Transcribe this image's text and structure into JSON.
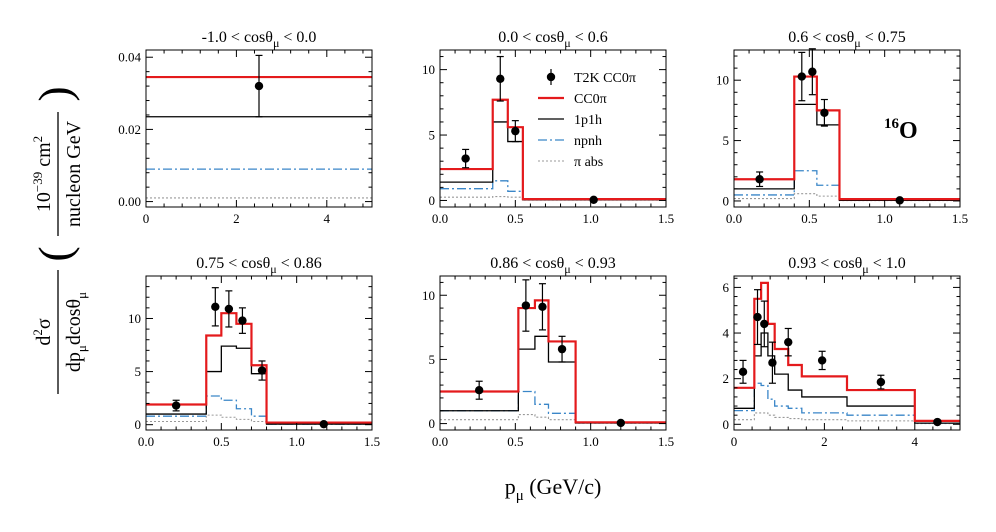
{
  "figure": {
    "ylabel_prefix": "d",
    "ylabel_sup": "2",
    "ylabel_sigma": "σ",
    "ylabel_den_a": "dp",
    "ylabel_den_sub1": "μ",
    "ylabel_den_b": "dcosθ",
    "ylabel_den_sub2": "μ",
    "yunit_num_a": "10",
    "yunit_num_sup": "−39",
    "yunit_num_b": " cm",
    "yunit_num_sup2": "2",
    "yunit_den": "nucleon GeV",
    "xlabel_p": "p",
    "xlabel_sub": "μ",
    "xlabel_units": " (GeV/c)",
    "nucleus_mass": "16",
    "nucleus_symbol": "O"
  },
  "legend": {
    "entries": [
      {
        "key": "data",
        "label": "T2K CC0π"
      },
      {
        "key": "cc0pi",
        "label": "CC0π"
      },
      {
        "key": "p1h",
        "label": "1p1h"
      },
      {
        "key": "npnh",
        "label": "npnh"
      },
      {
        "key": "piabs",
        "label": "π abs"
      }
    ]
  },
  "styles": {
    "data": {
      "color": "#000000"
    },
    "cc0pi": {
      "color": "#e41a1c"
    },
    "p1h": {
      "color": "#000000"
    },
    "npnh": {
      "color": "#3a86c8"
    },
    "piabs": {
      "color": "#999999"
    }
  },
  "chart_data": [
    {
      "type": "histogram",
      "title_prefix": "-1.0 < cosθ",
      "title_sub": "μ",
      "title_suffix": " < 0.0",
      "xlim": [
        0,
        5
      ],
      "ylim": [
        -0.0015,
        0.042
      ],
      "xticks": [
        0,
        2,
        4
      ],
      "xtick_labels": [
        "0",
        "2",
        "4"
      ],
      "yticks": [
        0,
        0.02,
        0.04
      ],
      "ytick_labels": [
        "0.00",
        "0.02",
        "0.04"
      ],
      "bins": [
        0,
        5
      ],
      "series": {
        "cc0pi": [
          0.0345
        ],
        "p1h": [
          0.0235
        ],
        "npnh": [
          0.009
        ],
        "piabs": [
          0.001
        ]
      },
      "points": [
        {
          "x": 2.5,
          "y": 0.032,
          "err": 0.0085
        }
      ]
    },
    {
      "type": "histogram",
      "title_prefix": "0.0 < cosθ",
      "title_sub": "μ",
      "title_suffix": " < 0.6",
      "xlim": [
        0,
        1.5
      ],
      "ylim": [
        -0.5,
        11.5
      ],
      "xticks": [
        0,
        0.5,
        1,
        1.5
      ],
      "xtick_labels": [
        "0.0",
        "0.5",
        "1.0",
        "1.5"
      ],
      "yticks": [
        0,
        5,
        10
      ],
      "ytick_labels": [
        "0",
        "5",
        "10"
      ],
      "bins": [
        0,
        0.35,
        0.45,
        0.55,
        1.5
      ],
      "series": {
        "cc0pi": [
          2.4,
          7.7,
          5.6,
          0.1
        ],
        "p1h": [
          1.4,
          6.0,
          4.5,
          0.05
        ],
        "npnh": [
          0.9,
          1.5,
          0.7,
          0.05
        ],
        "piabs": [
          0.25,
          0.3,
          0.25,
          0.03
        ]
      },
      "points": [
        {
          "x": 0.17,
          "y": 3.2,
          "err": 0.7
        },
        {
          "x": 0.4,
          "y": 9.3,
          "err": 1.7
        },
        {
          "x": 0.5,
          "y": 5.3,
          "err": 0.8
        },
        {
          "x": 1.02,
          "y": 0.05,
          "err": 0.0
        }
      ],
      "show_legend": true
    },
    {
      "type": "histogram",
      "title_prefix": "0.6 < cosθ",
      "title_sub": "μ",
      "title_suffix": " < 0.75",
      "xlim": [
        0,
        1.5
      ],
      "ylim": [
        -0.5,
        12.5
      ],
      "xticks": [
        0,
        0.5,
        1,
        1.5
      ],
      "xtick_labels": [
        "0.0",
        "0.5",
        "1.0",
        "1.5"
      ],
      "yticks": [
        0,
        5,
        10
      ],
      "ytick_labels": [
        "0",
        "5",
        "10"
      ],
      "bins": [
        0,
        0.4,
        0.55,
        0.7,
        1.5
      ],
      "series": {
        "cc0pi": [
          1.8,
          10.3,
          7.5,
          0.15
        ],
        "p1h": [
          1.0,
          8.0,
          6.3,
          0.05
        ],
        "npnh": [
          0.5,
          2.5,
          1.3,
          0.05
        ],
        "piabs": [
          0.2,
          0.6,
          0.4,
          0.03
        ]
      },
      "points": [
        {
          "x": 0.17,
          "y": 1.8,
          "err": 0.6
        },
        {
          "x": 0.45,
          "y": 10.3,
          "err": 2.0
        },
        {
          "x": 0.52,
          "y": 10.7,
          "err": 1.9
        },
        {
          "x": 0.6,
          "y": 7.3,
          "err": 1.1
        },
        {
          "x": 1.1,
          "y": 0.05,
          "err": 0.0
        }
      ],
      "show_nucleus": true
    },
    {
      "type": "histogram",
      "title_prefix": "0.75 < cosθ",
      "title_sub": "μ",
      "title_suffix": " < 0.86",
      "xlim": [
        0,
        1.5
      ],
      "ylim": [
        -0.5,
        14
      ],
      "xticks": [
        0,
        0.5,
        1,
        1.5
      ],
      "xtick_labels": [
        "0.0",
        "0.5",
        "1.0",
        "1.5"
      ],
      "yticks": [
        0,
        5,
        10
      ],
      "ytick_labels": [
        "0",
        "5",
        "10"
      ],
      "bins": [
        0,
        0.4,
        0.5,
        0.6,
        0.7,
        0.8,
        1.5
      ],
      "series": {
        "cc0pi": [
          1.9,
          8.4,
          10.5,
          9.5,
          5.6,
          0.2
        ],
        "p1h": [
          1.0,
          5.0,
          7.4,
          7.2,
          4.8,
          0.05
        ],
        "npnh": [
          0.8,
          2.7,
          2.3,
          1.5,
          0.8,
          0.05
        ],
        "piabs": [
          0.3,
          0.9,
          0.7,
          0.5,
          0.3,
          0.05
        ]
      },
      "points": [
        {
          "x": 0.2,
          "y": 1.8,
          "err": 0.5
        },
        {
          "x": 0.46,
          "y": 11.1,
          "err": 1.8
        },
        {
          "x": 0.55,
          "y": 10.9,
          "err": 1.7
        },
        {
          "x": 0.64,
          "y": 9.8,
          "err": 1.2
        },
        {
          "x": 0.77,
          "y": 5.1,
          "err": 0.9
        },
        {
          "x": 1.18,
          "y": 0.05,
          "err": 0.0
        }
      ]
    },
    {
      "type": "histogram",
      "title_prefix": "0.86 < cosθ",
      "title_sub": "μ",
      "title_suffix": " < 0.93",
      "xlim": [
        0,
        1.5
      ],
      "ylim": [
        -0.5,
        11.5
      ],
      "xticks": [
        0,
        0.5,
        1,
        1.5
      ],
      "xtick_labels": [
        "0.0",
        "0.5",
        "1.0",
        "1.5"
      ],
      "yticks": [
        0,
        5,
        10
      ],
      "ytick_labels": [
        "0",
        "5",
        "10"
      ],
      "bins": [
        0,
        0.52,
        0.63,
        0.72,
        0.9,
        1.5
      ],
      "series": {
        "cc0pi": [
          2.5,
          9.0,
          9.6,
          6.4,
          0.1
        ],
        "p1h": [
          1.0,
          5.8,
          6.8,
          4.8,
          0.05
        ],
        "npnh": [
          1.0,
          2.5,
          1.5,
          0.8,
          0.05
        ],
        "piabs": [
          0.3,
          0.7,
          0.5,
          0.3,
          0.03
        ]
      },
      "points": [
        {
          "x": 0.26,
          "y": 2.6,
          "err": 0.7
        },
        {
          "x": 0.57,
          "y": 9.2,
          "err": 2.0
        },
        {
          "x": 0.68,
          "y": 9.1,
          "err": 1.8
        },
        {
          "x": 0.81,
          "y": 5.8,
          "err": 1.0
        },
        {
          "x": 1.2,
          "y": 0.05,
          "err": 0.0
        }
      ]
    },
    {
      "type": "histogram",
      "title_prefix": "0.93 < cosθ",
      "title_sub": "μ",
      "title_suffix": " < 1.0",
      "xlim": [
        0,
        5
      ],
      "ylim": [
        -0.25,
        6.5
      ],
      "xticks": [
        0,
        2,
        4
      ],
      "xtick_labels": [
        "0",
        "2",
        "4"
      ],
      "yticks": [
        0,
        2,
        4,
        6
      ],
      "ytick_labels": [
        "0",
        "2",
        "4",
        "6"
      ],
      "bins": [
        0,
        0.45,
        0.6,
        0.75,
        0.9,
        1.2,
        1.5,
        2.5,
        4.0,
        5.0
      ],
      "series": {
        "cc0pi": [
          1.6,
          5.5,
          6.2,
          4.4,
          3.3,
          2.6,
          2.1,
          1.5,
          0.15
        ],
        "p1h": [
          0.7,
          3.0,
          4.0,
          3.0,
          2.2,
          1.5,
          1.2,
          0.8,
          0.05
        ],
        "npnh": [
          0.6,
          1.8,
          1.7,
          1.1,
          0.8,
          0.7,
          0.5,
          0.4,
          0.05
        ],
        "piabs": [
          0.2,
          0.5,
          0.5,
          0.4,
          0.3,
          0.25,
          0.2,
          0.15,
          0.03
        ]
      },
      "points": [
        {
          "x": 0.2,
          "y": 2.3,
          "err": 0.5
        },
        {
          "x": 0.52,
          "y": 4.7,
          "err": 1.2
        },
        {
          "x": 0.67,
          "y": 4.4,
          "err": 1.0
        },
        {
          "x": 0.85,
          "y": 2.7,
          "err": 0.9
        },
        {
          "x": 1.2,
          "y": 3.6,
          "err": 0.6
        },
        {
          "x": 1.95,
          "y": 2.8,
          "err": 0.4
        },
        {
          "x": 3.25,
          "y": 1.85,
          "err": 0.3
        },
        {
          "x": 4.5,
          "y": 0.1,
          "err": 0.05
        }
      ]
    }
  ]
}
